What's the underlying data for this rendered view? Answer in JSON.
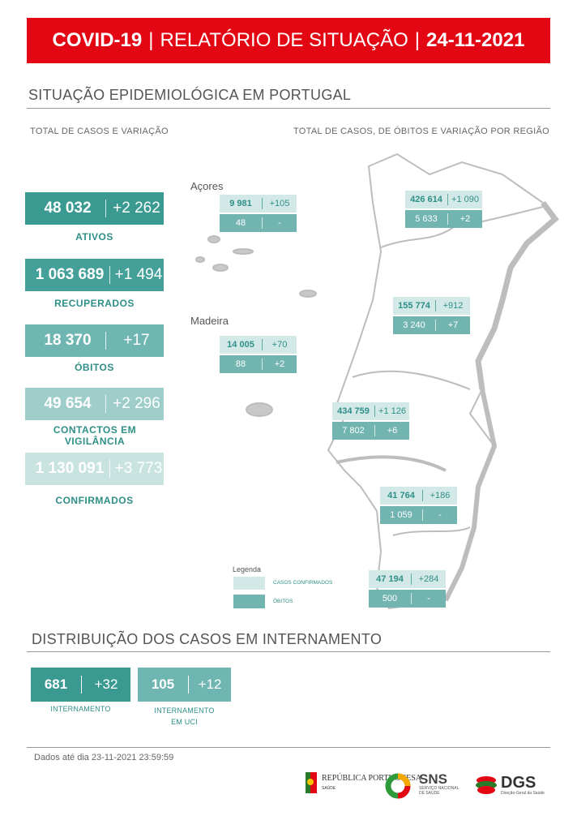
{
  "banner": {
    "part1": "COVID-19",
    "sep1": "|",
    "part2": "RELATÓRIO DE SITUAÇÃO",
    "sep2": "|",
    "date": "24-11-2021"
  },
  "section1": {
    "title": "SITUAÇÃO EPIDEMIOLÓGICA EM PORTUGAL",
    "left_subtitle": "TOTAL DE CASOS E VARIAÇÃO",
    "right_subtitle": "TOTAL DE CASOS, DE ÓBITOS E VARIAÇÃO POR REGIÃO"
  },
  "stats": [
    {
      "value": "48 032",
      "delta": "+2 262",
      "label": "ATIVOS",
      "color": "#3a9a92"
    },
    {
      "value": "1 063 689",
      "delta": "+1 494",
      "label": "RECUPERADOS",
      "color": "#45a09a"
    },
    {
      "value": "18 370",
      "delta": "+17",
      "label": "ÓBITOS",
      "color": "#6fb5b1"
    },
    {
      "value": "49 654",
      "delta": "+2 296",
      "label": "CONTACTOS EM VIGILÂNCIA",
      "color": "#9ecdca"
    },
    {
      "value": "1 130 091",
      "delta": "+3 773",
      "label": "CONFIRMADOS",
      "color": "#c9e3e1"
    }
  ],
  "regions": {
    "acores": {
      "name": "Açores",
      "cases": "9 981",
      "cases_delta": "+105",
      "deaths": "48",
      "deaths_delta": "-"
    },
    "madeira": {
      "name": "Madeira",
      "cases": "14 005",
      "cases_delta": "+70",
      "deaths": "88",
      "deaths_delta": "+2"
    },
    "norte": {
      "cases": "426 614",
      "cases_delta": "+1 090",
      "deaths": "5 633",
      "deaths_delta": "+2"
    },
    "centro": {
      "cases": "155 774",
      "cases_delta": "+912",
      "deaths": "3 240",
      "deaths_delta": "+7"
    },
    "lvt": {
      "cases": "434 759",
      "cases_delta": "+1 126",
      "deaths": "7 802",
      "deaths_delta": "+6"
    },
    "alentejo": {
      "cases": "41 764",
      "cases_delta": "+186",
      "deaths": "1 059",
      "deaths_delta": "-"
    },
    "algarve": {
      "cases": "47 194",
      "cases_delta": "+284",
      "deaths": "500",
      "deaths_delta": "-"
    }
  },
  "legend": {
    "title": "Legenda",
    "confirmed": "CASOS CONFIRMADOS",
    "deaths": "ÓBITOS",
    "confirmed_color": "#d3e9e7",
    "deaths_color": "#72b5b0"
  },
  "section2": {
    "title": "DISTRIBUIÇÃO DOS CASOS EM INTERNAMENTO"
  },
  "hospital": [
    {
      "value": "681",
      "delta": "+32",
      "label1": "INTERNAMENTO",
      "label2": "",
      "color": "#3a9a92"
    },
    {
      "value": "105",
      "delta": "+12",
      "label1": "INTERNAMENTO",
      "label2": "EM UCI",
      "color": "#6fb5b1"
    }
  ],
  "footer": {
    "note": "Dados até dia 23-11-2021 23:59:59",
    "logos": {
      "republica": "REPÚBLICA PORTUGUESA",
      "republica_sub": "SAÚDE",
      "sns": "SNS",
      "sns_sub": "SERVIÇO NACIONAL DE SAÚDE",
      "dgs": "DGS",
      "dgs_sub": "Direção-Geral da Saúde"
    }
  }
}
